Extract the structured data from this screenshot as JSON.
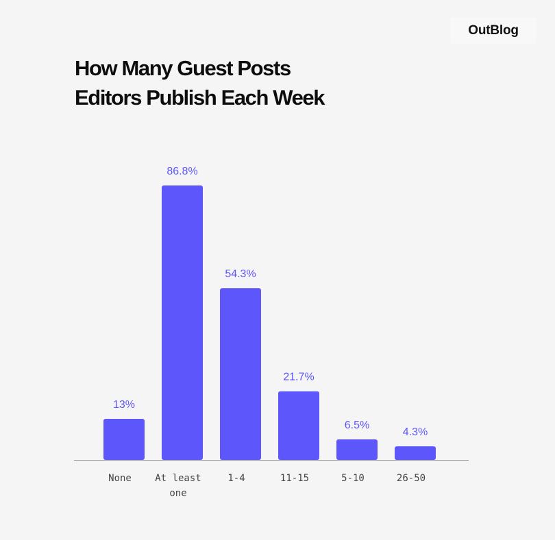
{
  "brand": "OutBlog",
  "title_lines": [
    "How Many Guest Posts",
    "Editors Publish Each Week"
  ],
  "colors": {
    "bar": "#5d57fb",
    "value_label": "#5d57fb",
    "axis": "#9a9a9a",
    "background": "#f5f5f5"
  },
  "chart_data": {
    "type": "bar",
    "title": "How Many Guest Posts Editors Publish Each Week",
    "xlabel": "",
    "ylabel": "",
    "categories": [
      "None",
      "At least one",
      "1-4",
      "11-15",
      "5-10",
      "26-50"
    ],
    "category_lines": [
      [
        "None"
      ],
      [
        "At least",
        "one"
      ],
      [
        "1-4"
      ],
      [
        "11-15"
      ],
      [
        "5-10"
      ],
      [
        "26-50"
      ]
    ],
    "values": [
      13,
      86.8,
      54.3,
      21.7,
      6.5,
      4.3
    ],
    "value_labels": [
      "13%",
      "86.8%",
      "54.3%",
      "21.7%",
      "6.5%",
      "4.3%"
    ],
    "unit": "%",
    "ylim": [
      0,
      100
    ],
    "grid": false,
    "legend": "none"
  }
}
